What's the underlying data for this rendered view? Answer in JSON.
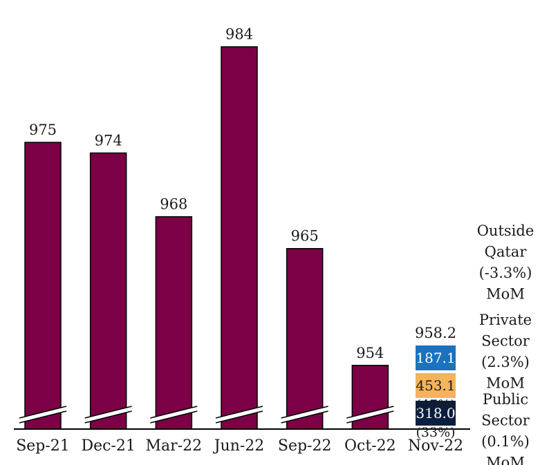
{
  "chart_data": {
    "type": "bar",
    "categories": [
      "Sep-21",
      "Dec-21",
      "Mar-22",
      "Jun-22",
      "Sep-22",
      "Oct-22",
      "Nov-22"
    ],
    "values": [
      975,
      974,
      968,
      984,
      965,
      954,
      958.2
    ],
    "value_labels": [
      "975",
      "974",
      "968",
      "984",
      "965",
      "954",
      "958.2"
    ],
    "y_axis_broken": true,
    "ylim": [
      948,
      986
    ],
    "grid": false,
    "bar_color": "#7b0046",
    "stacked_last_bar": {
      "category": "Nov-22",
      "total_label": "958.2",
      "segments": [
        {
          "value": 318.0,
          "label": "318.0",
          "share_label": "(33%)",
          "color": "#0a1e3f",
          "text_color": "#ffffff"
        },
        {
          "value": 453.1,
          "label": "453.1",
          "share_label": "(47%)",
          "color": "#f4b45a",
          "text_color": "#1a1a1a"
        },
        {
          "value": 187.1,
          "label": "187.1",
          "share_label": "",
          "color": "#1b72c0",
          "text_color": "#ffffff"
        }
      ]
    },
    "segment_annotations": [
      {
        "lines": [
          "Outside",
          "Qatar",
          "(-3.3%)",
          "MoM"
        ]
      },
      {
        "lines": [
          "Private",
          "Sector",
          "(2.3%)",
          "MoM"
        ]
      },
      {
        "lines": [
          "Public",
          "Sector",
          "(0.1%)",
          "MoM"
        ]
      }
    ]
  }
}
